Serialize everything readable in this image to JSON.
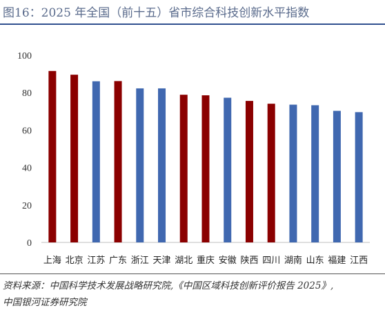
{
  "figure": {
    "title": "图16：2025 年全国（前十五）省市综合科技创新水平指数",
    "source_line1": "资料来源：中国科学技术发展战略研究院,《中国区域科技创新评价报告 2025》,",
    "source_line2": "中国银河证券研究院"
  },
  "chart_data": {
    "type": "bar",
    "categories": [
      "上海",
      "北京",
      "江苏",
      "广东",
      "浙江",
      "天津",
      "湖北",
      "重庆",
      "安徽",
      "陕西",
      "四川",
      "湖南",
      "山东",
      "福建",
      "江西"
    ],
    "values": [
      91.6,
      89.6,
      86.1,
      86.2,
      82.3,
      82.3,
      78.9,
      78.6,
      77.3,
      75.6,
      74.1,
      73.6,
      73.3,
      70.3,
      69.6
    ],
    "bar_colors": [
      "#8b0000",
      "#8b0000",
      "#4068b0",
      "#8b0000",
      "#4068b0",
      "#4068b0",
      "#8b0000",
      "#8b0000",
      "#4068b0",
      "#8b0000",
      "#8b0000",
      "#4068b0",
      "#4068b0",
      "#4068b0",
      "#4068b0"
    ],
    "ylim": [
      0,
      100
    ],
    "yticks": [
      "0",
      "20",
      "40",
      "60",
      "80",
      "100"
    ],
    "grid": false,
    "colors": {
      "red": "#8b0000",
      "blue": "#4068b0"
    }
  }
}
